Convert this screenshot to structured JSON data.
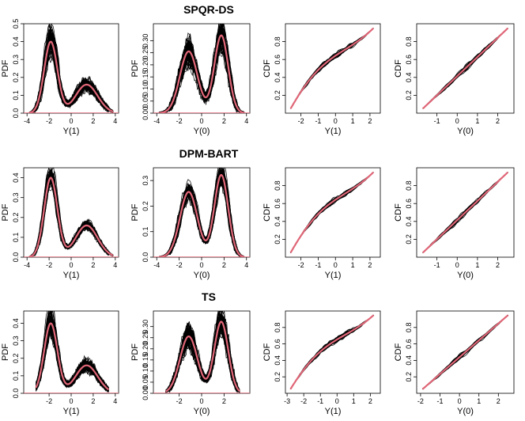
{
  "chart_data": {
    "type": "line",
    "description_rows": [
      "SPQR-DS",
      "DPM-BART",
      "TS"
    ],
    "colors": {
      "draws": "#000000",
      "truth": "#e06677",
      "axis": "#000000"
    },
    "panels": [
      {
        "row": 0,
        "col": 0,
        "kind": "pdf",
        "var": "Y(1)",
        "ylabel": "PDF",
        "xlabel": "Y(1)",
        "xlim": [
          -4.3,
          4.3
        ],
        "ylim": [
          0,
          0.5
        ],
        "xticks": [
          -4,
          -2,
          0,
          2,
          4
        ],
        "yticks": [
          0.0,
          0.1,
          0.2,
          0.3,
          0.4,
          0.5
        ],
        "curve_range": [
          -3.8,
          3.8
        ],
        "jitter": 0.22,
        "n_draws": 60,
        "seed": 11
      },
      {
        "row": 0,
        "col": 1,
        "kind": "pdf",
        "var": "Y(0)",
        "ylabel": "PDF",
        "xlabel": "Y(0)",
        "xlim": [
          -4.3,
          4.3
        ],
        "ylim": [
          0,
          0.37
        ],
        "xticks": [
          -4,
          -2,
          0,
          2,
          4
        ],
        "yticks": [
          0.0,
          0.05,
          0.1,
          0.15,
          0.2,
          0.25,
          0.3
        ],
        "curve_range": [
          -3.8,
          3.8
        ],
        "jitter": 0.22,
        "n_draws": 60,
        "seed": 12
      },
      {
        "row": 0,
        "col": 2,
        "kind": "cdf",
        "var": "Y(1)",
        "ylabel": "CDF",
        "xlabel": "Y(1)",
        "xlim": [
          -2.9,
          2.6
        ],
        "ylim": [
          0,
          1
        ],
        "xticks": [
          -2,
          -1,
          0,
          1,
          2
        ],
        "yticks": [
          0.2,
          0.4,
          0.6,
          0.8
        ],
        "curve_range": [
          -2.6,
          2.2
        ],
        "jitter": 0.07,
        "n_draws": 45,
        "seed": 13
      },
      {
        "row": 0,
        "col": 3,
        "kind": "cdf",
        "var": "Y(0)",
        "ylabel": "CDF",
        "xlabel": "Y(0)",
        "xlim": [
          -2.0,
          2.8
        ],
        "ylim": [
          0,
          1
        ],
        "xticks": [
          -1,
          0,
          1,
          2
        ],
        "yticks": [
          0.2,
          0.4,
          0.6,
          0.8
        ],
        "curve_range": [
          -1.7,
          2.5
        ],
        "jitter": 0.07,
        "n_draws": 45,
        "seed": 14
      },
      {
        "row": 1,
        "col": 0,
        "kind": "pdf",
        "var": "Y(1)",
        "ylabel": "PDF",
        "xlabel": "Y(1)",
        "xlim": [
          -4.3,
          4.3
        ],
        "ylim": [
          0,
          0.45
        ],
        "xticks": [
          -4,
          -2,
          0,
          2,
          4
        ],
        "yticks": [
          0.0,
          0.1,
          0.2,
          0.3,
          0.4
        ],
        "curve_range": [
          -3.8,
          3.8
        ],
        "jitter": 0.13,
        "n_draws": 60,
        "seed": 21
      },
      {
        "row": 1,
        "col": 1,
        "kind": "pdf",
        "var": "Y(0)",
        "ylabel": "PDF",
        "xlabel": "Y(0)",
        "xlim": [
          -4.3,
          4.3
        ],
        "ylim": [
          0,
          0.35
        ],
        "xticks": [
          -4,
          -2,
          0,
          2,
          4
        ],
        "yticks": [
          0.0,
          0.1,
          0.2,
          0.3
        ],
        "curve_range": [
          -3.8,
          3.8
        ],
        "jitter": 0.13,
        "n_draws": 60,
        "seed": 22
      },
      {
        "row": 1,
        "col": 2,
        "kind": "cdf",
        "var": "Y(1)",
        "ylabel": "CDF",
        "xlabel": "Y(1)",
        "xlim": [
          -2.9,
          2.6
        ],
        "ylim": [
          0,
          1
        ],
        "xticks": [
          -2,
          -1,
          0,
          1,
          2
        ],
        "yticks": [
          0.2,
          0.4,
          0.6,
          0.8
        ],
        "curve_range": [
          -2.6,
          2.2
        ],
        "jitter": 0.06,
        "n_draws": 45,
        "seed": 23
      },
      {
        "row": 1,
        "col": 3,
        "kind": "cdf",
        "var": "Y(0)",
        "ylabel": "CDF",
        "xlabel": "Y(0)",
        "xlim": [
          -2.0,
          2.8
        ],
        "ylim": [
          0,
          1
        ],
        "xticks": [
          -1,
          0,
          1,
          2
        ],
        "yticks": [
          0.2,
          0.4,
          0.6,
          0.8
        ],
        "curve_range": [
          -1.7,
          2.5
        ],
        "jitter": 0.06,
        "n_draws": 45,
        "seed": 24
      },
      {
        "row": 2,
        "col": 0,
        "kind": "pdf",
        "var": "Y(1)",
        "ylabel": "PDF",
        "xlabel": "Y(1)",
        "xlim": [
          -4.3,
          4.3
        ],
        "ylim": [
          0,
          0.47
        ],
        "xticks": [
          -2,
          0,
          2,
          4
        ],
        "yticks": [
          0.0,
          0.1,
          0.2,
          0.3,
          0.4
        ],
        "curve_range": [
          -3.2,
          3.4
        ],
        "jitter": 0.2,
        "n_draws": 60,
        "seed": 31
      },
      {
        "row": 2,
        "col": 1,
        "kind": "pdf",
        "var": "Y(0)",
        "ylabel": "PDF",
        "xlabel": "Y(0)",
        "xlim": [
          -4.3,
          4.3
        ],
        "ylim": [
          0,
          0.37
        ],
        "xticks": [
          -2,
          0,
          2
        ],
        "yticks": [
          0.0,
          0.05,
          0.1,
          0.15,
          0.2,
          0.25,
          0.3
        ],
        "curve_range": [
          -3.2,
          3.4
        ],
        "jitter": 0.2,
        "n_draws": 60,
        "seed": 32
      },
      {
        "row": 2,
        "col": 2,
        "kind": "cdf",
        "var": "Y(1)",
        "ylabel": "CDF",
        "xlabel": "Y(1)",
        "xlim": [
          -3.1,
          2.6
        ],
        "ylim": [
          0,
          1
        ],
        "xticks": [
          -3,
          -2,
          -1,
          0,
          1,
          2
        ],
        "yticks": [
          0.2,
          0.4,
          0.6,
          0.8
        ],
        "curve_range": [
          -2.8,
          2.2
        ],
        "jitter": 0.08,
        "n_draws": 45,
        "seed": 33
      },
      {
        "row": 2,
        "col": 3,
        "kind": "cdf",
        "var": "Y(0)",
        "ylabel": "CDF",
        "xlabel": "Y(0)",
        "xlim": [
          -2.2,
          2.8
        ],
        "ylim": [
          0,
          1
        ],
        "xticks": [
          -2,
          -1,
          0,
          1,
          2
        ],
        "yticks": [
          0.2,
          0.4,
          0.6,
          0.8
        ],
        "curve_range": [
          -1.9,
          2.5
        ],
        "jitter": 0.07,
        "n_draws": 45,
        "seed": 34
      }
    ]
  }
}
